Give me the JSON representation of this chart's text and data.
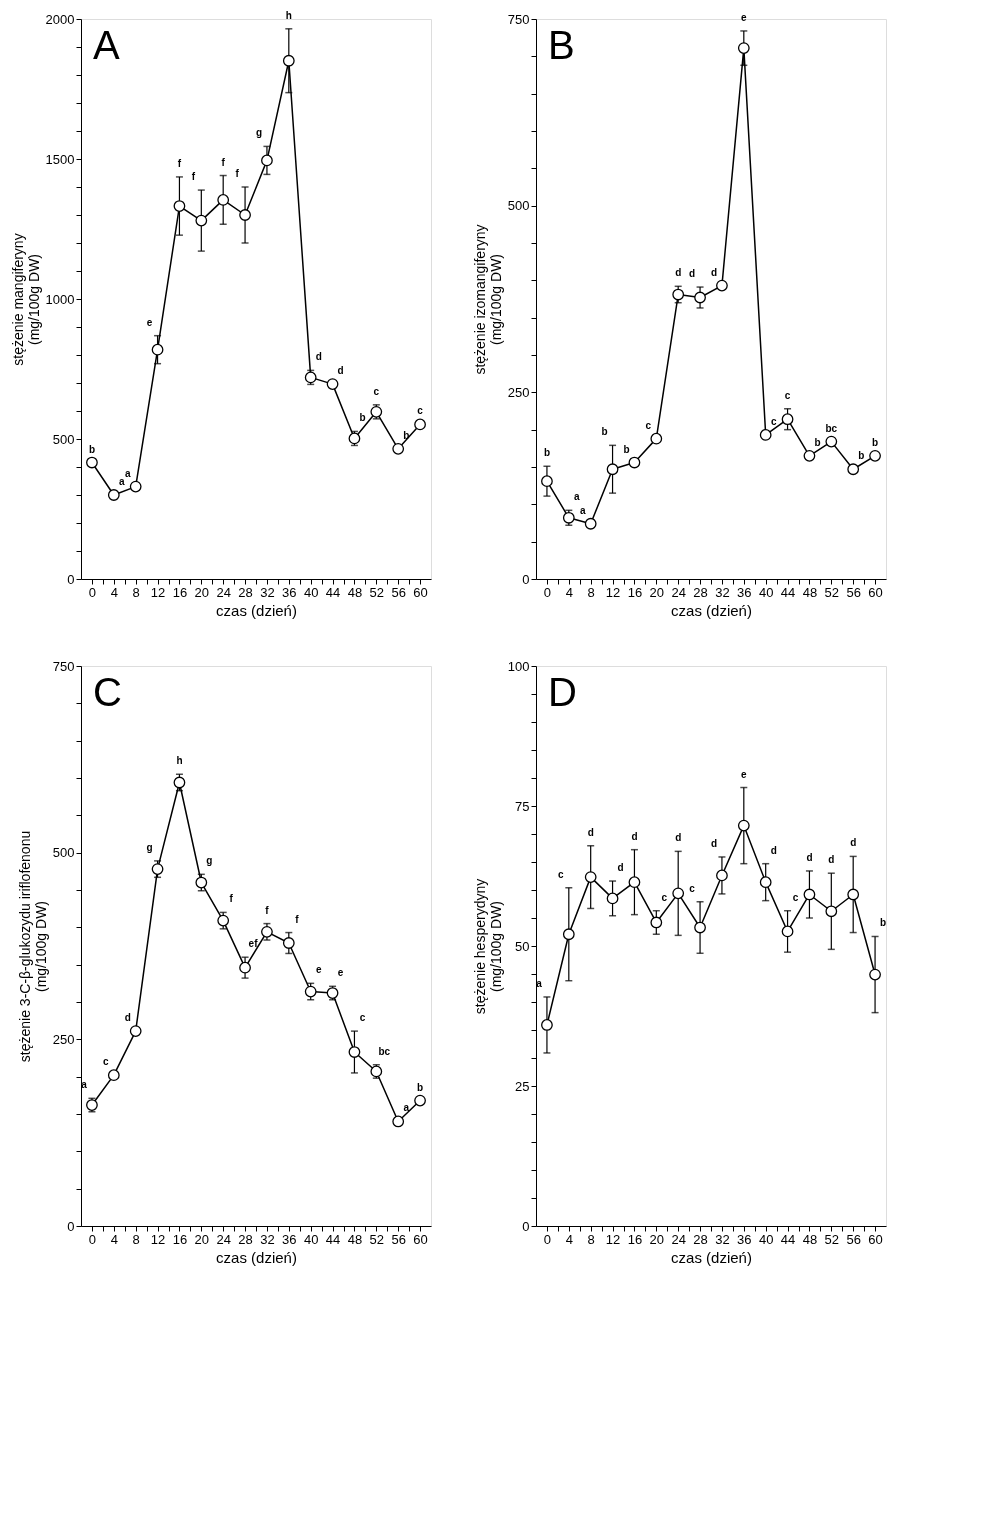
{
  "chart_data": [
    {
      "type": "line",
      "title": "A",
      "xlabel": "czas (dzień)",
      "ylabel": "stężenie mangiferyny\n(mg/100g DW)",
      "marker": "circle",
      "line_style": "solid",
      "grid": false,
      "x": [
        0,
        4,
        8,
        12,
        16,
        20,
        24,
        28,
        32,
        36,
        40,
        44,
        48,
        52,
        56,
        60
      ],
      "series": [
        {
          "color": "#000000",
          "values": [
            416,
            300,
            330,
            819,
            1332,
            1280,
            1354,
            1300,
            1495,
            1851,
            720,
            696,
            502,
            597,
            465,
            552
          ],
          "errors": [
            null,
            null,
            null,
            50,
            104,
            109,
            87,
            100,
            50,
            114,
            25,
            null,
            25,
            25,
            null,
            null
          ]
        }
      ],
      "xlim": [
        -2,
        62
      ],
      "xticks": [
        0,
        {
          "value": 2,
          "label": null
        },
        4,
        {
          "value": 6,
          "label": null
        },
        8,
        {
          "value": 10,
          "label": null
        },
        12,
        {
          "value": 14,
          "label": null
        },
        16,
        {
          "value": 18,
          "label": null
        },
        20,
        {
          "value": 22,
          "label": null
        },
        24,
        {
          "value": 26,
          "label": null
        },
        28,
        {
          "value": 30,
          "label": null
        },
        32,
        {
          "value": 34,
          "label": null
        },
        36,
        {
          "value": 38,
          "label": null
        },
        40,
        {
          "value": 42,
          "label": null
        },
        44,
        {
          "value": 46,
          "label": null
        },
        48,
        {
          "value": 50,
          "label": null
        },
        52,
        {
          "value": 54,
          "label": null
        },
        56,
        {
          "value": 58,
          "label": null
        },
        60
      ],
      "ylim": [
        0,
        2000
      ],
      "yticks": [
        0,
        {
          "value": 100,
          "label": null
        },
        {
          "value": 200,
          "label": null
        },
        {
          "value": 300,
          "label": null
        },
        {
          "value": 400,
          "label": null
        },
        500,
        {
          "value": 600,
          "label": null
        },
        {
          "value": 700,
          "label": null
        },
        {
          "value": 800,
          "label": null
        },
        {
          "value": 900,
          "label": null
        },
        1000,
        {
          "value": 1100,
          "label": null
        },
        {
          "value": 1200,
          "label": null
        },
        {
          "value": 1300,
          "label": null
        },
        {
          "value": 1400,
          "label": null
        },
        1500,
        {
          "value": 1600,
          "label": null
        },
        {
          "value": 1700,
          "label": null
        },
        {
          "value": 1800,
          "label": null
        },
        {
          "value": 1900,
          "label": null
        },
        2000
      ],
      "annotations": [
        "b",
        "a",
        "a",
        "e",
        "f",
        "f",
        "f",
        "f",
        "g",
        "h",
        "d",
        "d",
        "b",
        "c",
        "b",
        "c"
      ]
    },
    {
      "type": "line",
      "title": "B",
      "xlabel": "czas (dzień)",
      "ylabel": "stężenie izomangiferyny\n(mg/100g DW)",
      "marker": "circle",
      "line_style": "solid",
      "grid": false,
      "x": [
        0,
        4,
        8,
        12,
        16,
        20,
        24,
        28,
        32,
        36,
        40,
        44,
        48,
        52,
        56,
        60
      ],
      "series": [
        {
          "color": "#000000",
          "values": [
            131,
            82,
            74,
            147,
            156,
            188,
            381,
            377,
            393,
            711,
            193,
            214,
            165,
            184,
            147,
            165
          ],
          "errors": [
            20,
            10,
            null,
            32,
            null,
            null,
            11,
            14,
            null,
            23,
            null,
            14,
            null,
            null,
            null,
            null
          ]
        }
      ],
      "xlim": [
        -2,
        62
      ],
      "xticks": [
        0,
        {
          "value": 2,
          "label": null
        },
        4,
        {
          "value": 6,
          "label": null
        },
        8,
        {
          "value": 10,
          "label": null
        },
        12,
        {
          "value": 14,
          "label": null
        },
        16,
        {
          "value": 18,
          "label": null
        },
        20,
        {
          "value": 22,
          "label": null
        },
        24,
        {
          "value": 26,
          "label": null
        },
        28,
        {
          "value": 30,
          "label": null
        },
        32,
        {
          "value": 34,
          "label": null
        },
        36,
        {
          "value": 38,
          "label": null
        },
        40,
        {
          "value": 42,
          "label": null
        },
        44,
        {
          "value": 46,
          "label": null
        },
        48,
        {
          "value": 50,
          "label": null
        },
        52,
        {
          "value": 54,
          "label": null
        },
        56,
        {
          "value": 58,
          "label": null
        },
        60
      ],
      "ylim": [
        0,
        750
      ],
      "yticks": [
        0,
        {
          "value": 50,
          "label": null
        },
        {
          "value": 100,
          "label": null
        },
        {
          "value": 150,
          "label": null
        },
        {
          "value": 200,
          "label": null
        },
        250,
        {
          "value": 300,
          "label": null
        },
        {
          "value": 350,
          "label": null
        },
        {
          "value": 400,
          "label": null
        },
        {
          "value": 450,
          "label": null
        },
        500,
        {
          "value": 550,
          "label": null
        },
        {
          "value": 600,
          "label": null
        },
        {
          "value": 650,
          "label": null
        },
        {
          "value": 700,
          "label": null
        },
        750
      ],
      "annotations": [
        "b",
        "a",
        "a",
        "b",
        "b",
        "c",
        "d",
        "d",
        "d",
        "e",
        "c",
        "c",
        "b",
        "bc",
        "b",
        "b"
      ]
    },
    {
      "type": "line",
      "title": "C",
      "xlabel": "czas (dzień)",
      "ylabel": "stężenie 3-C-β-glukozydu iriflofenonu\n(mg/100g DW)",
      "marker": "circle",
      "line_style": "solid",
      "grid": false,
      "x": [
        0,
        4,
        8,
        12,
        16,
        20,
        24,
        28,
        32,
        36,
        40,
        44,
        48,
        52,
        56,
        60
      ],
      "series": [
        {
          "color": "#000000",
          "values": [
            162,
            202,
            261,
            478,
            594,
            460,
            409,
            346,
            394,
            379,
            314,
            312,
            233,
            207,
            140,
            168
          ],
          "errors": [
            9,
            null,
            null,
            11,
            11,
            11,
            11,
            14,
            11,
            14,
            11,
            9,
            28,
            9,
            null,
            null
          ]
        }
      ],
      "xlim": [
        -2,
        62
      ],
      "xticks": [
        0,
        {
          "value": 2,
          "label": null
        },
        4,
        {
          "value": 6,
          "label": null
        },
        8,
        {
          "value": 10,
          "label": null
        },
        12,
        {
          "value": 14,
          "label": null
        },
        16,
        {
          "value": 18,
          "label": null
        },
        20,
        {
          "value": 22,
          "label": null
        },
        24,
        {
          "value": 26,
          "label": null
        },
        28,
        {
          "value": 30,
          "label": null
        },
        32,
        {
          "value": 34,
          "label": null
        },
        36,
        {
          "value": 38,
          "label": null
        },
        40,
        {
          "value": 42,
          "label": null
        },
        44,
        {
          "value": 46,
          "label": null
        },
        48,
        {
          "value": 50,
          "label": null
        },
        52,
        {
          "value": 54,
          "label": null
        },
        56,
        {
          "value": 58,
          "label": null
        },
        60
      ],
      "ylim": [
        0,
        750
      ],
      "yticks": [
        0,
        {
          "value": 50,
          "label": null
        },
        {
          "value": 100,
          "label": null
        },
        {
          "value": 150,
          "label": null
        },
        {
          "value": 200,
          "label": null
        },
        250,
        {
          "value": 300,
          "label": null
        },
        {
          "value": 350,
          "label": null
        },
        {
          "value": 400,
          "label": null
        },
        {
          "value": 450,
          "label": null
        },
        500,
        {
          "value": 550,
          "label": null
        },
        {
          "value": 600,
          "label": null
        },
        {
          "value": 650,
          "label": null
        },
        {
          "value": 700,
          "label": null
        },
        750
      ],
      "annotations": [
        "a",
        "c",
        "d",
        "g",
        "h",
        "g",
        "f",
        "ef",
        "f",
        "f",
        "e",
        "e",
        "c",
        "bc",
        "a",
        "b"
      ]
    },
    {
      "type": "line",
      "title": "D",
      "xlabel": "czas (dzień)",
      "ylabel": "stężenie hesperydyny\n(mg/100g DW)",
      "marker": "circle",
      "line_style": "solid",
      "grid": false,
      "x": [
        0,
        4,
        8,
        12,
        16,
        20,
        24,
        28,
        32,
        36,
        40,
        44,
        48,
        52,
        56,
        60
      ],
      "series": [
        {
          "color": "#000000",
          "values": [
            35.9,
            52.1,
            62.3,
            58.5,
            61.4,
            54.2,
            59.4,
            53.3,
            62.6,
            71.5,
            61.4,
            52.6,
            59.2,
            56.2,
            59.2,
            44.9
          ],
          "errors": [
            5.0,
            8.3,
            5.6,
            3.1,
            5.8,
            2.1,
            7.5,
            4.6,
            3.3,
            6.8,
            3.3,
            3.7,
            4.2,
            6.8,
            6.8,
            6.8
          ]
        }
      ],
      "xlim": [
        -2,
        62
      ],
      "xticks": [
        0,
        {
          "value": 2,
          "label": null
        },
        4,
        {
          "value": 6,
          "label": null
        },
        8,
        {
          "value": 10,
          "label": null
        },
        12,
        {
          "value": 14,
          "label": null
        },
        16,
        {
          "value": 18,
          "label": null
        },
        20,
        {
          "value": 22,
          "label": null
        },
        24,
        {
          "value": 26,
          "label": null
        },
        28,
        {
          "value": 30,
          "label": null
        },
        32,
        {
          "value": 34,
          "label": null
        },
        36,
        {
          "value": 38,
          "label": null
        },
        40,
        {
          "value": 42,
          "label": null
        },
        44,
        {
          "value": 46,
          "label": null
        },
        48,
        {
          "value": 50,
          "label": null
        },
        52,
        {
          "value": 54,
          "label": null
        },
        56,
        {
          "value": 58,
          "label": null
        },
        60
      ],
      "ylim": [
        0,
        100
      ],
      "yticks": [
        0,
        {
          "value": 5,
          "label": null
        },
        {
          "value": 10,
          "label": null
        },
        {
          "value": 15,
          "label": null
        },
        {
          "value": 20,
          "label": null
        },
        25,
        {
          "value": 30,
          "label": null
        },
        {
          "value": 35,
          "label": null
        },
        {
          "value": 40,
          "label": null
        },
        {
          "value": 45,
          "label": null
        },
        50,
        {
          "value": 55,
          "label": null
        },
        {
          "value": 60,
          "label": null
        },
        {
          "value": 65,
          "label": null
        },
        {
          "value": 70,
          "label": null
        },
        75,
        {
          "value": 80,
          "label": null
        },
        {
          "value": 85,
          "label": null
        },
        {
          "value": 90,
          "label": null
        },
        {
          "value": 95,
          "label": null
        },
        100
      ],
      "annotations": [
        "a",
        "c",
        "d",
        "d",
        "d",
        "c",
        "d",
        "c",
        "d",
        "e",
        "d",
        "c",
        "d",
        "d",
        "d",
        "b"
      ]
    }
  ]
}
